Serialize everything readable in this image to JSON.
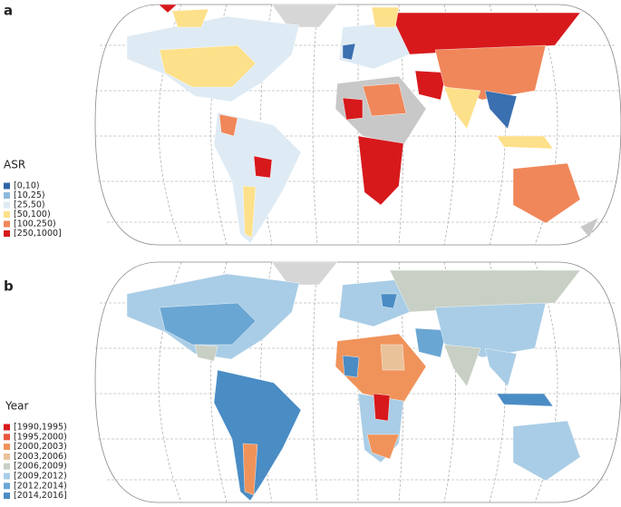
{
  "panels": [
    {
      "label": "a",
      "legend": {
        "title": "ASR",
        "items": [
          "[0,10)",
          "[10,25)",
          "[25,50)",
          "[50,100)",
          "[100,250)",
          "[250,1000]"
        ]
      }
    },
    {
      "label": "b",
      "legend": {
        "title": "Year",
        "items": [
          "[1990,1995)",
          "[1995,2000)",
          "[2000,2003)",
          "[2003,2006)",
          "[2006,2009)",
          "[2009,2012)",
          "[2012,2014)",
          "[2014,2016]"
        ]
      }
    }
  ]
}
